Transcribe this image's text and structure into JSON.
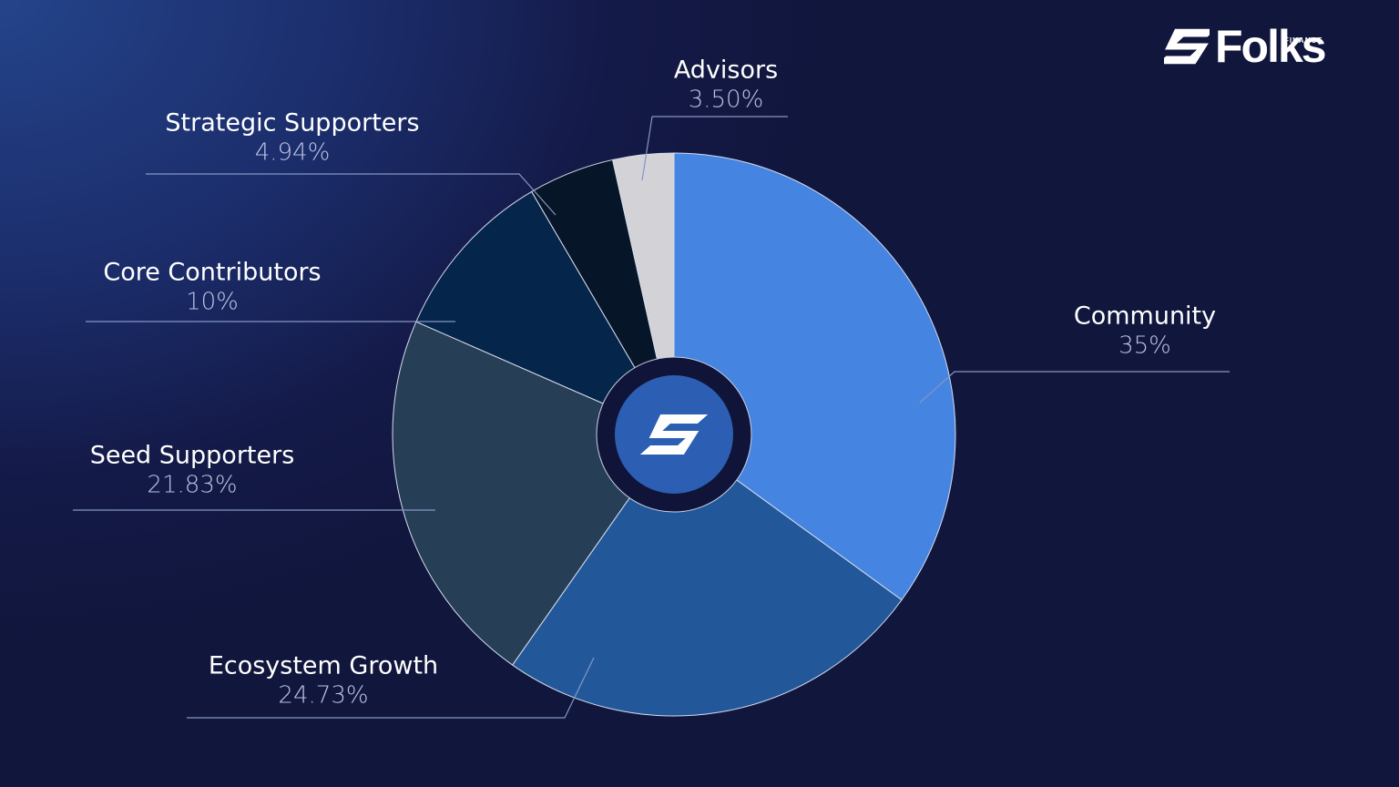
{
  "brand": {
    "name": "Folks",
    "sub": "FINANCE"
  },
  "chart_data": {
    "type": "pie",
    "variant": "donut-with-center-logo",
    "start": "12 o'clock, clockwise",
    "slices": [
      {
        "label": "Community",
        "value": 35,
        "display": "35%",
        "color": "#4584e0"
      },
      {
        "label": "Ecosystem Growth",
        "value": 24.73,
        "display": "24.73%",
        "color": "#22589a"
      },
      {
        "label": "Seed Supporters",
        "value": 21.83,
        "display": "21.83%",
        "color": "#263f56"
      },
      {
        "label": "Core Contributors",
        "value": 10,
        "display": "10%",
        "color": "#06254a"
      },
      {
        "label": "Strategic Supporters",
        "value": 4.94,
        "display": "4.94%",
        "color": "#061628"
      },
      {
        "label": "Advisors",
        "value": 3.5,
        "display": "3.50%",
        "color": "#d3d3d7"
      }
    ],
    "center_colors": {
      "ring": "#0f1438",
      "disc": "#2c5fb3"
    }
  }
}
